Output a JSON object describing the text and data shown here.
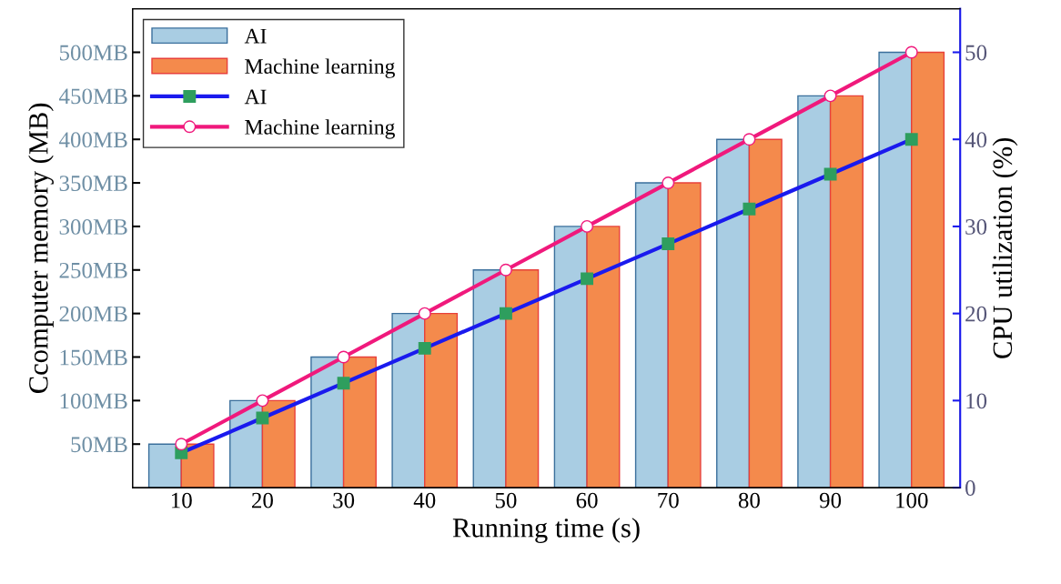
{
  "chart_data": {
    "type": "bar",
    "xlabel": "Running time (s)",
    "ylabel": "Ccomputer memory (MB)",
    "y2label": "CPU utilization (%)",
    "categories": [
      "10",
      "20",
      "30",
      "40",
      "50",
      "60",
      "70",
      "80",
      "90",
      "100"
    ],
    "series": [
      {
        "name": "AI",
        "color": "#a9cde3",
        "values": [
          50,
          100,
          150,
          200,
          250,
          300,
          350,
          400,
          450,
          500
        ]
      },
      {
        "name": "Machine learning",
        "color": "#f48a4c",
        "values": [
          50,
          100,
          150,
          200,
          250,
          300,
          350,
          400,
          450,
          500
        ]
      },
      {
        "name": "AI",
        "type": "line",
        "axis": "y2",
        "color": "#1a1aee",
        "marker": "square",
        "values": [
          4,
          8,
          12,
          16,
          20,
          24,
          28,
          32,
          36,
          40
        ]
      },
      {
        "name": "Machine learning",
        "type": "line",
        "axis": "y2",
        "color": "#f0197c",
        "marker": "circle",
        "values": [
          5,
          10,
          15,
          20,
          25,
          30,
          35,
          40,
          45,
          50
        ]
      }
    ],
    "ylim": [
      0,
      550
    ],
    "yticks": [
      {
        "value": 50,
        "label": "50MB"
      },
      {
        "value": 100,
        "label": "100MB"
      },
      {
        "value": 150,
        "label": "150MB"
      },
      {
        "value": 200,
        "label": "200MB"
      },
      {
        "value": 250,
        "label": "250MB"
      },
      {
        "value": 300,
        "label": "300MB"
      },
      {
        "value": 350,
        "label": "350MB"
      },
      {
        "value": 400,
        "label": "400MB"
      },
      {
        "value": 450,
        "label": "450MB"
      },
      {
        "value": 500,
        "label": "500MB"
      }
    ],
    "y2lim": [
      0,
      55
    ],
    "y2ticks": [
      0,
      10,
      20,
      30,
      40,
      50
    ],
    "legend": "top left",
    "grid": false,
    "line_style": "solid"
  }
}
